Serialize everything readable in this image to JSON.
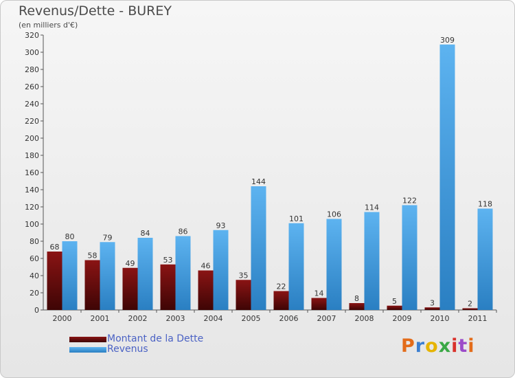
{
  "chart_data": {
    "type": "bar",
    "title": "Revenus/Dette - BUREY",
    "subtitle": "(en milliers d'€)",
    "categories": [
      "2000",
      "2001",
      "2002",
      "2003",
      "2004",
      "2005",
      "2006",
      "2007",
      "2008",
      "2009",
      "2010",
      "2011"
    ],
    "series": [
      {
        "name": "Montant de la Dette",
        "color": "#7a1010",
        "values": [
          68,
          58,
          49,
          53,
          46,
          35,
          22,
          14,
          8,
          5,
          3,
          2
        ]
      },
      {
        "name": "Revenus",
        "color": "#4aa3e6",
        "values": [
          80,
          79,
          84,
          86,
          93,
          144,
          101,
          106,
          114,
          122,
          309,
          118
        ]
      }
    ],
    "ylim": [
      0,
      320
    ],
    "yticks": [
      0,
      20,
      40,
      60,
      80,
      100,
      120,
      140,
      160,
      180,
      200,
      220,
      240,
      260,
      280,
      300,
      320
    ],
    "xlabel": "",
    "ylabel": "",
    "grid": false,
    "legend_position": "bottom-left"
  },
  "logo": {
    "letters": [
      "P",
      "r",
      "o",
      "x",
      "i",
      "t",
      "i"
    ],
    "colors": [
      "#e36c1a",
      "#3b7fd1",
      "#e6b400",
      "#3aa845",
      "#d9312b",
      "#9b4bc9",
      "#e36c1a"
    ]
  }
}
